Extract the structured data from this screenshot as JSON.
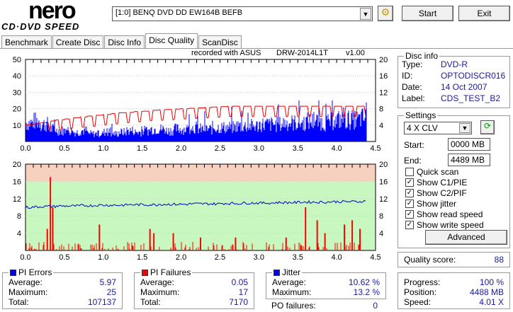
{
  "app": {
    "logo_top": "nero",
    "logo_bottom": "CD·DVD SPEED"
  },
  "toolbar": {
    "drive": "[1:0]  BENQ DVD DD EW164B BEFB",
    "start": "Start",
    "exit": "Exit"
  },
  "tabs": [
    "Benchmark",
    "Create Disc",
    "Disc Info",
    "Disc Quality",
    "ScanDisc"
  ],
  "chart_header": {
    "recorded": "recorded with ASUS",
    "drive": "DRW-2014L1T",
    "version": "v1.00"
  },
  "top_chart": {
    "y_left": [
      "50",
      "40",
      "30",
      "20",
      "10"
    ],
    "y_right": [
      "20",
      "16",
      "12",
      "8",
      "4"
    ],
    "x": [
      "0.0",
      "0.5",
      "1.0",
      "1.5",
      "2.0",
      "2.5",
      "3.0",
      "3.5",
      "4.0",
      "4.5"
    ],
    "pie": [
      12,
      13,
      11,
      8,
      7,
      7,
      6,
      7,
      5,
      5,
      6,
      5,
      6,
      7,
      6,
      7,
      8,
      8,
      7,
      8,
      8,
      9,
      8,
      8,
      9,
      9,
      9,
      10,
      10,
      10,
      11,
      11,
      11,
      12,
      12,
      12,
      13,
      13,
      12,
      13,
      14,
      14,
      14,
      15,
      15
    ],
    "read_speed": [
      4,
      4.3,
      4.6,
      5,
      5.3,
      5.5,
      5.8,
      6,
      6.2,
      6.4,
      6.6,
      6.8,
      7,
      7.1,
      7.3,
      7.4,
      7.6,
      7.7,
      7.8,
      7.9,
      8,
      8.1,
      8.2,
      8.3,
      8.4,
      8.5,
      8.6,
      8.6,
      8.6,
      8.6,
      8.6,
      8.6,
      8.6,
      8.6,
      8.6,
      8.6,
      8.6,
      8.6,
      8.6,
      8.6,
      8.6,
      8.6,
      8.6,
      8.6,
      8.6
    ]
  },
  "bottom_chart": {
    "y_left": [
      "20",
      "16",
      "12",
      "8",
      "4"
    ],
    "y_right": [
      "20",
      "16",
      "12",
      "8",
      "4"
    ],
    "x": [
      "0.0",
      "0.5",
      "1.0",
      "1.5",
      "2.0",
      "2.5",
      "3.0",
      "3.5",
      "4.0",
      "4.5"
    ],
    "jitter": [
      10,
      10.1,
      10.2,
      10.2,
      10.3,
      10.3,
      10.3,
      10.4,
      10.4,
      10.5,
      10.5,
      10.5,
      10.5,
      10.6,
      10.6,
      10.6,
      10.6,
      10.7,
      10.7,
      10.7,
      10.7,
      10.8,
      10.8,
      10.8,
      10.8,
      10.9,
      10.9,
      10.9,
      11,
      11,
      11,
      11,
      11.1,
      11.1,
      11.1,
      11.2,
      11.2,
      11.2,
      11.2,
      11.3,
      11.3,
      11.3,
      11.3,
      11.4,
      11.4
    ],
    "pif_spikes": [
      [
        0.32,
        17
      ],
      [
        0.35,
        10
      ],
      [
        0.28,
        5
      ],
      [
        0.95,
        6
      ],
      [
        1.6,
        5
      ],
      [
        1.65,
        4
      ],
      [
        1.9,
        4
      ],
      [
        2.25,
        3
      ],
      [
        2.7,
        3
      ],
      [
        3.35,
        3
      ],
      [
        3.6,
        10
      ],
      [
        3.75,
        7
      ],
      [
        3.85,
        4
      ],
      [
        4.1,
        6
      ],
      [
        4.2,
        7
      ],
      [
        4.3,
        5
      ]
    ]
  },
  "disc_info": {
    "title": "Disc info",
    "rows": [
      {
        "k": "Type:",
        "v": "DVD-R"
      },
      {
        "k": "ID:",
        "v": "OPTODISCR016"
      },
      {
        "k": "Date:",
        "v": "14 Oct 2007"
      },
      {
        "k": "Label:",
        "v": "CDS_TEST_B2"
      }
    ]
  },
  "settings": {
    "title": "Settings",
    "speed": "4 X CLV",
    "start_label": "Start:",
    "start": "0000 MB",
    "end_label": "End:",
    "end": "4489 MB",
    "checks": [
      {
        "l": "Quick scan",
        "c": false
      },
      {
        "l": "Show C1/PIE",
        "c": true
      },
      {
        "l": "Show C2/PIF",
        "c": true
      },
      {
        "l": "Show jitter",
        "c": true
      },
      {
        "l": "Show read speed",
        "c": true
      },
      {
        "l": "Show write speed",
        "c": true
      }
    ],
    "advanced": "Advanced"
  },
  "quality": {
    "label": "Quality score:",
    "value": "88"
  },
  "pie_stats": {
    "title": "PI Errors",
    "avg_l": "Average:",
    "avg": "5.97",
    "max_l": "Maximum:",
    "max": "25",
    "tot_l": "Total:",
    "tot": "107137",
    "color": "#0000ff"
  },
  "pif_stats": {
    "title": "PI Failures",
    "avg_l": "Average:",
    "avg": "0.05",
    "max_l": "Maximum:",
    "max": "17",
    "tot_l": "Total:",
    "tot": "7170",
    "color": "#ff0000"
  },
  "jitter_stats": {
    "title": "Jitter",
    "avg_l": "Average:",
    "avg": "10.62 %",
    "max_l": "Maximum:",
    "max": "13.2 %",
    "po_l": "PO failures:",
    "po": "0",
    "color": "#0000ff"
  },
  "progress": {
    "p_l": "Progress:",
    "p": "100 %",
    "pos_l": "Position:",
    "pos": "4488 MB",
    "s_l": "Speed:",
    "s": "4.01 X"
  }
}
